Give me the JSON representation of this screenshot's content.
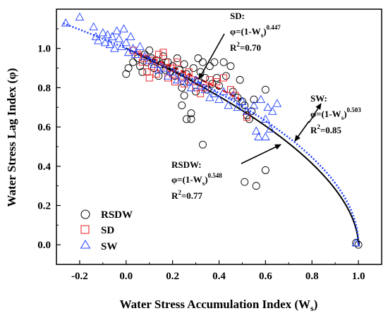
{
  "chart_data": {
    "type": "scatter",
    "title": "",
    "xlabel": "Water Stress Accumulation Index (W",
    "xlabel_sub": "s",
    "xlabel_close": ")",
    "ylabel": "Water Stress Lag Index (φ)",
    "xlim": [
      -0.3,
      1.1
    ],
    "ylim": [
      -0.1,
      1.2
    ],
    "xticks": [
      "-0.2",
      "0.0",
      "0.2",
      "0.4",
      "0.6",
      "0.8",
      "1.0"
    ],
    "xtick_values": [
      -0.2,
      0.0,
      0.2,
      0.4,
      0.6,
      0.8,
      1.0
    ],
    "yticks": [
      "0.0",
      "0.2",
      "0.4",
      "0.6",
      "0.8",
      "1.0"
    ],
    "ytick_values": [
      0.0,
      0.2,
      0.4,
      0.6,
      0.8,
      1.0
    ],
    "grid": false,
    "legend_position": "bottom-left",
    "series": [
      {
        "name": "RSDW",
        "marker": "circle",
        "color": "#000000",
        "points": [
          [
            0.0,
            0.87
          ],
          [
            0.01,
            0.9
          ],
          [
            0.03,
            0.93
          ],
          [
            0.05,
            0.95
          ],
          [
            0.06,
            0.91
          ],
          [
            0.07,
            0.88
          ],
          [
            0.08,
            0.97
          ],
          [
            0.09,
            0.93
          ],
          [
            0.1,
            0.99
          ],
          [
            0.11,
            0.95
          ],
          [
            0.12,
            0.9
          ],
          [
            0.13,
            0.94
          ],
          [
            0.14,
            0.86
          ],
          [
            0.15,
            0.92
          ],
          [
            0.16,
            0.96
          ],
          [
            0.17,
            0.89
          ],
          [
            0.18,
            0.93
          ],
          [
            0.19,
            0.88
          ],
          [
            0.2,
            0.91
          ],
          [
            0.21,
            0.86
          ],
          [
            0.22,
            0.95
          ],
          [
            0.23,
            0.89
          ],
          [
            0.24,
            0.8
          ],
          [
            0.24,
            0.71
          ],
          [
            0.25,
            0.92
          ],
          [
            0.25,
            0.76
          ],
          [
            0.26,
            0.87
          ],
          [
            0.26,
            0.64
          ],
          [
            0.27,
            0.83
          ],
          [
            0.28,
            0.67
          ],
          [
            0.28,
            0.64
          ],
          [
            0.29,
            0.9
          ],
          [
            0.3,
            0.78
          ],
          [
            0.31,
            0.95
          ],
          [
            0.31,
            0.83
          ],
          [
            0.32,
            0.88
          ],
          [
            0.33,
            0.93
          ],
          [
            0.33,
            0.51
          ],
          [
            0.34,
            0.85
          ],
          [
            0.35,
            0.79
          ],
          [
            0.36,
            0.91
          ],
          [
            0.37,
            0.82
          ],
          [
            0.38,
            0.93
          ],
          [
            0.39,
            0.85
          ],
          [
            0.4,
            0.81
          ],
          [
            0.42,
            0.93
          ],
          [
            0.43,
            0.86
          ],
          [
            0.45,
            0.91
          ],
          [
            0.46,
            0.78
          ],
          [
            0.48,
            0.75
          ],
          [
            0.49,
            0.84
          ],
          [
            0.5,
            0.73
          ],
          [
            0.51,
            0.71
          ],
          [
            0.51,
            0.32
          ],
          [
            0.52,
            0.66
          ],
          [
            0.53,
            0.64
          ],
          [
            0.54,
            0.68
          ],
          [
            0.55,
            0.74
          ],
          [
            0.56,
            0.3
          ],
          [
            0.6,
            0.79
          ],
          [
            0.6,
            0.38
          ],
          [
            0.99,
            0.01
          ],
          [
            1.0,
            0.0
          ]
        ]
      },
      {
        "name": "SD",
        "marker": "square",
        "color": "#e8191f",
        "points": [
          [
            0.03,
            0.99
          ],
          [
            0.05,
            0.97
          ],
          [
            0.07,
            0.93
          ],
          [
            0.08,
            0.95
          ],
          [
            0.09,
            0.88
          ],
          [
            0.1,
            0.85
          ],
          [
            0.11,
            0.91
          ],
          [
            0.12,
            0.94
          ],
          [
            0.13,
            0.87
          ],
          [
            0.14,
            0.97
          ],
          [
            0.15,
            0.9
          ],
          [
            0.16,
            0.98
          ],
          [
            0.17,
            0.93
          ],
          [
            0.18,
            0.85
          ],
          [
            0.19,
            0.9
          ],
          [
            0.2,
            0.87
          ],
          [
            0.21,
            0.83
          ],
          [
            0.22,
            0.93
          ],
          [
            0.24,
            0.86
          ],
          [
            0.25,
            0.82
          ],
          [
            0.27,
            0.88
          ],
          [
            0.28,
            0.84
          ],
          [
            0.3,
            0.8
          ],
          [
            0.32,
            0.77
          ],
          [
            0.34,
            0.8
          ],
          [
            0.36,
            0.84
          ],
          [
            0.39,
            0.83
          ],
          [
            0.42,
            0.85
          ],
          [
            0.45,
            0.79
          ],
          [
            0.47,
            0.76
          ],
          [
            0.52,
            0.65
          ]
        ]
      },
      {
        "name": "SW",
        "marker": "triangle",
        "color": "#1f3fff",
        "points": [
          [
            -0.26,
            1.13
          ],
          [
            -0.2,
            1.16
          ],
          [
            -0.14,
            1.11
          ],
          [
            -0.13,
            1.06
          ],
          [
            -0.12,
            1.04
          ],
          [
            -0.1,
            1.08
          ],
          [
            -0.09,
            1.03
          ],
          [
            -0.08,
            1.07
          ],
          [
            -0.07,
            1.02
          ],
          [
            -0.06,
            1.06
          ],
          [
            -0.05,
            1.0
          ],
          [
            -0.04,
            1.09
          ],
          [
            -0.03,
            1.05
          ],
          [
            -0.02,
            1.01
          ],
          [
            -0.01,
            1.1
          ],
          [
            0.0,
            1.03
          ],
          [
            0.01,
            0.98
          ],
          [
            0.02,
            1.06
          ],
          [
            0.03,
            1.0
          ],
          [
            0.04,
            0.97
          ],
          [
            0.06,
            1.01
          ],
          [
            0.08,
            0.96
          ],
          [
            0.1,
            0.94
          ],
          [
            0.12,
            0.92
          ],
          [
            0.14,
            0.89
          ],
          [
            0.16,
            0.9
          ],
          [
            0.18,
            0.86
          ],
          [
            0.2,
            0.88
          ],
          [
            0.22,
            0.84
          ],
          [
            0.24,
            0.85
          ],
          [
            0.26,
            0.83
          ],
          [
            0.28,
            0.8
          ],
          [
            0.3,
            0.84
          ],
          [
            0.32,
            0.81
          ],
          [
            0.34,
            0.79
          ],
          [
            0.36,
            0.75
          ],
          [
            0.38,
            0.77
          ],
          [
            0.4,
            0.74
          ],
          [
            0.42,
            0.78
          ],
          [
            0.44,
            0.71
          ],
          [
            0.46,
            0.76
          ],
          [
            0.48,
            0.7
          ],
          [
            0.5,
            0.73
          ],
          [
            0.52,
            0.68
          ],
          [
            0.55,
            0.71
          ],
          [
            0.56,
            0.58
          ],
          [
            0.57,
            0.55
          ],
          [
            0.58,
            0.74
          ],
          [
            0.6,
            0.64
          ],
          [
            0.6,
            0.55
          ],
          [
            0.61,
            0.7
          ],
          [
            0.62,
            0.59
          ],
          [
            0.63,
            0.68
          ],
          [
            0.65,
            0.72
          ],
          [
            0.99,
            0.01
          ]
        ]
      }
    ],
    "fits": [
      {
        "series": "RSDW",
        "exponent": 0.548,
        "x_range": [
          0.0,
          1.0
        ],
        "color": "#000000",
        "style": "solid"
      },
      {
        "series": "SD",
        "exponent": 0.447,
        "x_range": [
          0.05,
          0.5
        ],
        "color": "#e8191f",
        "style": "dashed"
      },
      {
        "series": "SW",
        "exponent": 0.503,
        "x_range": [
          -0.27,
          1.0
        ],
        "color": "#1f3fff",
        "style": "dotted"
      }
    ],
    "annotations": [
      {
        "id": "sd",
        "name": "SD:",
        "eq_prefix": "φ=(1-W",
        "eq_sub": "s",
        "eq_close": ")",
        "exponent": "0.447",
        "r2_label": "R",
        "r2_sup": "2",
        "r2_value": "=0.70"
      },
      {
        "id": "sw",
        "name": "SW:",
        "eq_prefix": "φ=(1-W",
        "eq_sub": "s",
        "eq_close": ")",
        "exponent": "0.503",
        "r2_label": "R",
        "r2_sup": "2",
        "r2_value": "=0.85"
      },
      {
        "id": "rsdw",
        "name": "RSDW:",
        "eq_prefix": "φ=(1-W",
        "eq_sub": "s",
        "eq_close": ")",
        "exponent": "0.548",
        "r2_label": "R",
        "r2_sup": "2",
        "r2_value": "=0.77"
      }
    ]
  }
}
